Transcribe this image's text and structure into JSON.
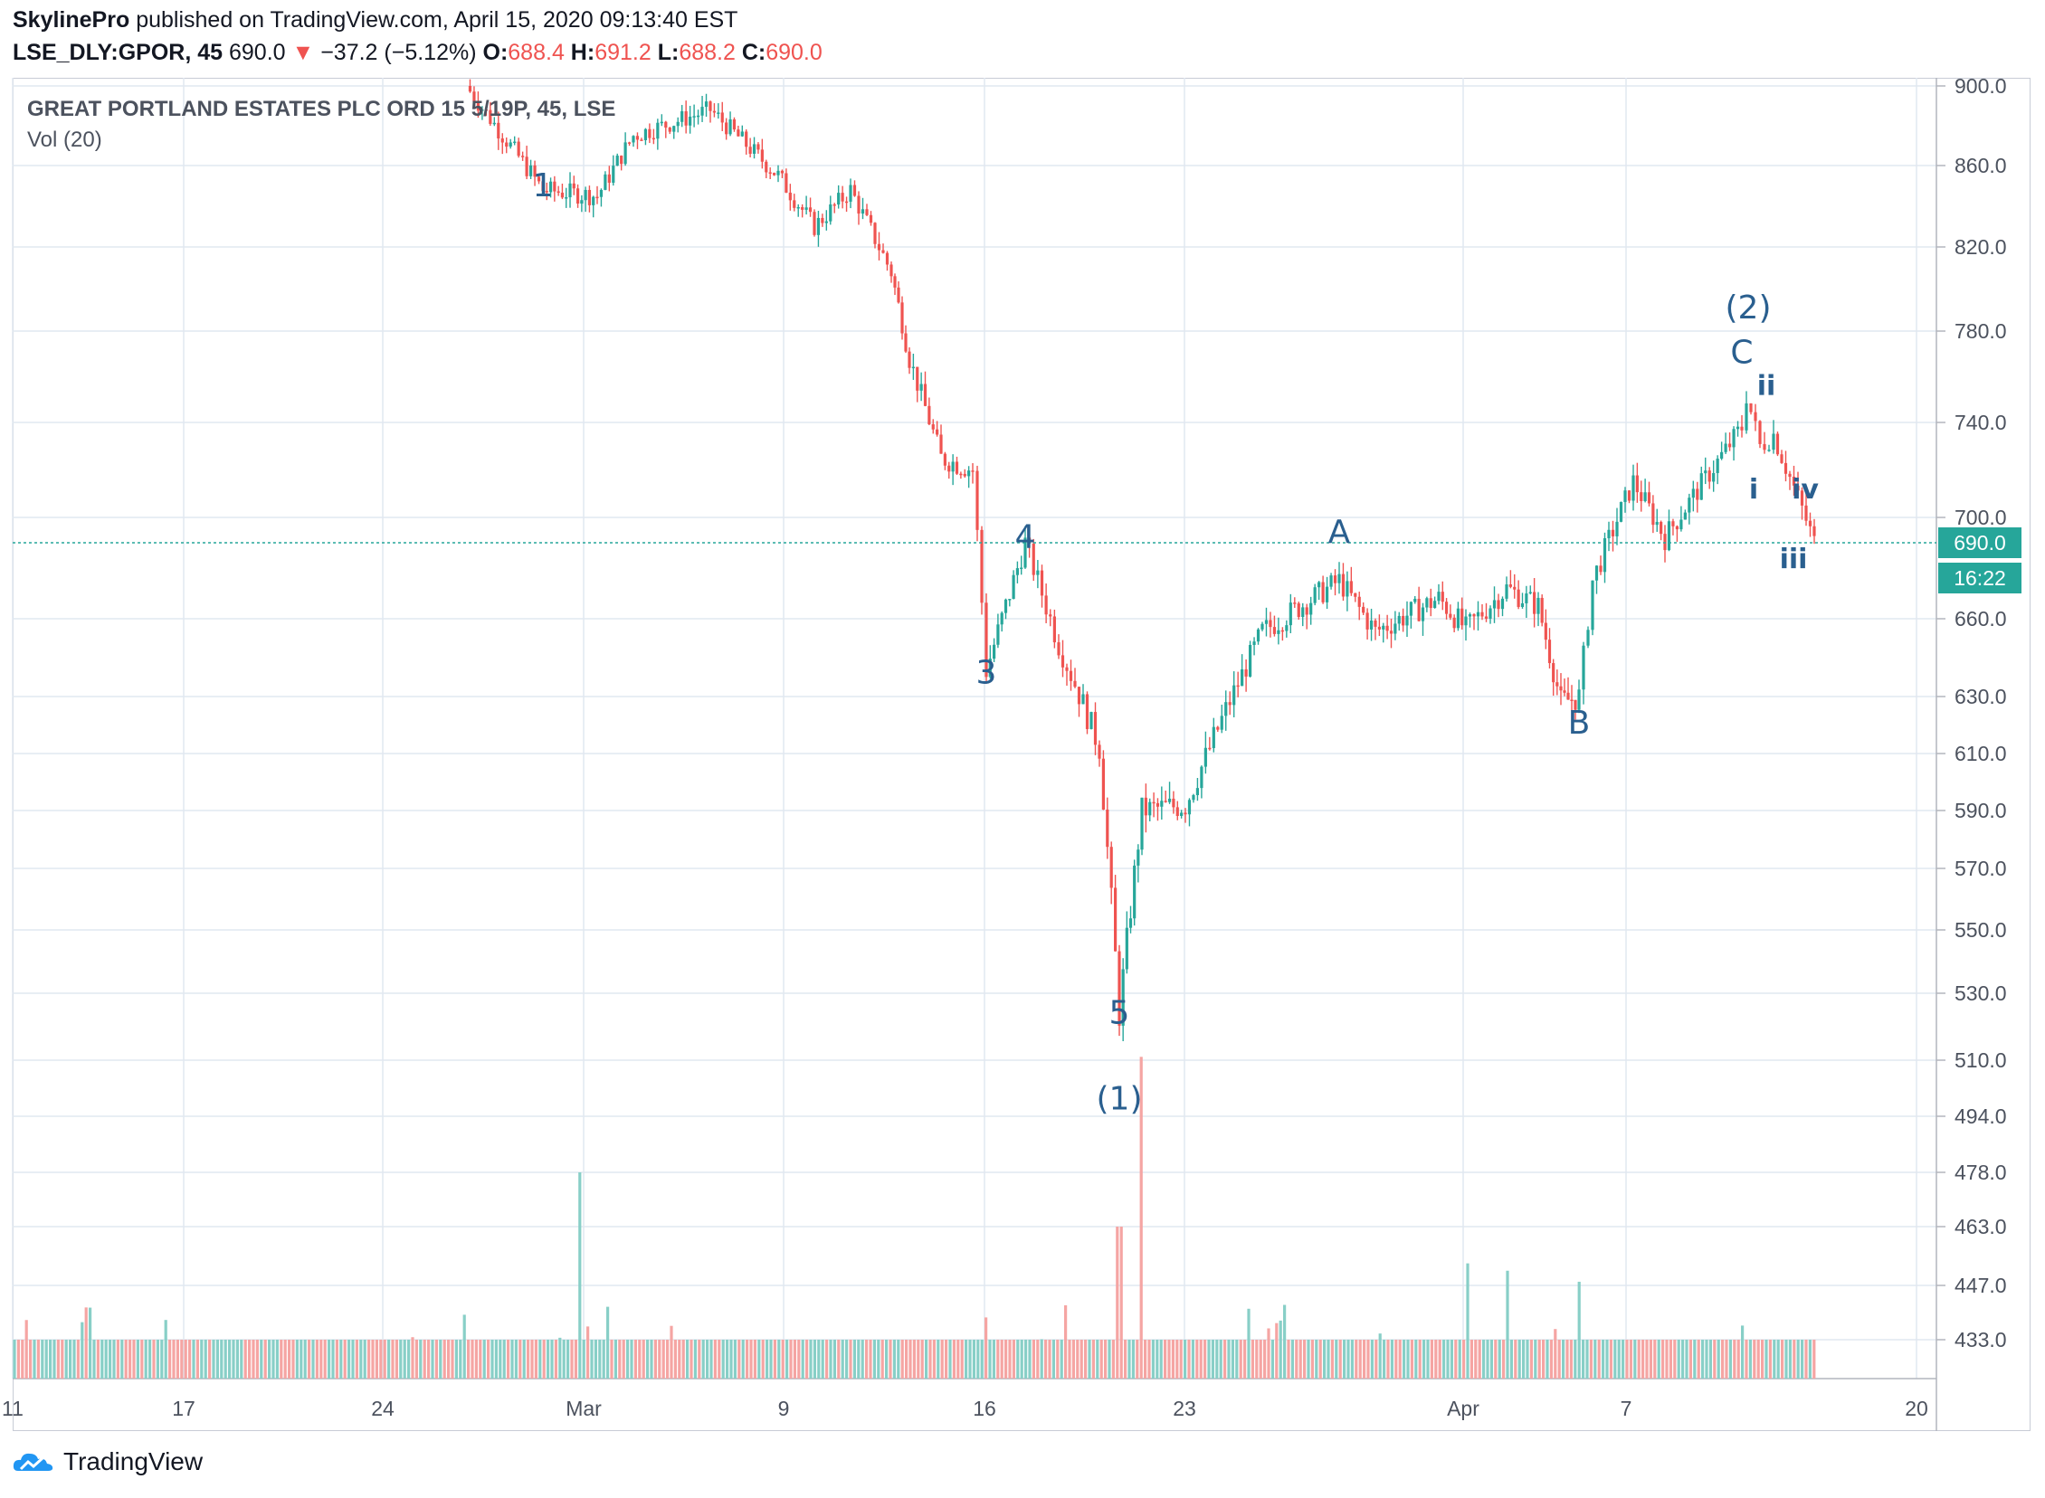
{
  "header": {
    "author": "SkylinePro",
    "published_text": "published on TradingView.com, April 15, 2020 09:13:40 EST",
    "symbol": "LSE_DLY:GPOR, 45",
    "last": "690.0",
    "change": "−37.2 (−5.12%)",
    "o_label": "O:",
    "o_value": "688.4",
    "h_label": "H:",
    "h_value": "691.2",
    "l_label": "L:",
    "l_value": "688.2",
    "c_label": "C:",
    "c_value": "690.0",
    "arrow": "▼"
  },
  "colors": {
    "up": "#26a69a",
    "down": "#ef5350",
    "label": "#2a5f8f",
    "grid": "#e1e8f0",
    "badge": "#26a69a"
  },
  "brand": {
    "name": "TradingView",
    "icon": "tradingview-cloud-icon"
  },
  "chart_data": {
    "type": "candlestick",
    "title": "GREAT PORTLAND ESTATES PLC ORD 15 5/19P, 45, LSE",
    "volume_label": "Vol (20)",
    "y_ticks": [
      "900.0",
      "860.0",
      "820.0",
      "780.0",
      "740.0",
      "700.0",
      "660.0",
      "630.0",
      "610.0",
      "590.0",
      "570.0",
      "550.0",
      "530.0",
      "510.0",
      "494.0",
      "478.0",
      "463.0",
      "447.0",
      "433.0"
    ],
    "y_tick_values": [
      900,
      860,
      820,
      780,
      740,
      700,
      660,
      630,
      610,
      590,
      570,
      550,
      530,
      510,
      494,
      478,
      463,
      447,
      433
    ],
    "x_ticks": [
      "11",
      "17",
      "24",
      "Mar",
      "9",
      "16",
      "23",
      "Apr",
      "7",
      "20"
    ],
    "last_price": "690.0",
    "countdown": "16:22",
    "wave_labels": [
      {
        "text": "1",
        "date": "Feb 28",
        "price": 845
      },
      {
        "text": "3",
        "date": "Mar 16",
        "price": 635
      },
      {
        "text": "4",
        "date": "Mar 17",
        "price": 688
      },
      {
        "text": "5",
        "date": "Mar 20",
        "price": 521
      },
      {
        "text": "(1)",
        "date": "Mar 20",
        "price": 496
      },
      {
        "text": "A",
        "date": "Mar 27",
        "price": 690
      },
      {
        "text": "B",
        "date": "Apr 6",
        "price": 617
      },
      {
        "text": "(2)",
        "date": "Apr 9",
        "price": 786
      },
      {
        "text": "C",
        "date": "Apr 9",
        "price": 766
      },
      {
        "text": "ii",
        "date": "Apr 9",
        "price": 752
      },
      {
        "text": "i",
        "date": "Apr 9",
        "price": 708
      },
      {
        "text": "iv",
        "date": "Apr 14",
        "price": 708
      },
      {
        "text": "iii",
        "date": "Apr 14",
        "price": 680
      }
    ],
    "series": [
      {
        "name": "Price",
        "anchors": [
          {
            "date": "Feb 26",
            "close": 900
          },
          {
            "date": "Feb 28",
            "close": 848
          },
          {
            "date": "Mar 2",
            "close": 845
          },
          {
            "date": "Mar 3",
            "close": 875
          },
          {
            "date": "Mar 6",
            "close": 888
          },
          {
            "date": "Mar 9",
            "close": 855
          },
          {
            "date": "Mar 10",
            "close": 830
          },
          {
            "date": "Mar 11",
            "close": 848
          },
          {
            "date": "Mar 12",
            "close": 808
          },
          {
            "date": "Mar 13",
            "close": 768
          },
          {
            "date": "Mar 14",
            "close": 725
          },
          {
            "date": "Mar 15",
            "close": 720
          },
          {
            "date": "Mar 16",
            "close": 640
          },
          {
            "date": "Mar 17",
            "close": 690
          },
          {
            "date": "Mar 18",
            "close": 650
          },
          {
            "date": "Mar 19",
            "close": 612
          },
          {
            "date": "Mar 20",
            "close": 524
          },
          {
            "date": "Mar 21",
            "close": 590
          },
          {
            "date": "Mar 23",
            "close": 592
          },
          {
            "date": "Mar 25",
            "close": 655
          },
          {
            "date": "Mar 27",
            "close": 675
          },
          {
            "date": "Mar 28",
            "close": 655
          },
          {
            "date": "Mar 30",
            "close": 668
          },
          {
            "date": "Apr 1",
            "close": 656
          },
          {
            "date": "Apr 2",
            "close": 672
          },
          {
            "date": "Apr 3",
            "close": 665
          },
          {
            "date": "Apr 5",
            "close": 628
          },
          {
            "date": "Apr 6",
            "close": 630
          },
          {
            "date": "Apr 7",
            "close": 675
          },
          {
            "date": "Apr 7b",
            "close": 715
          },
          {
            "date": "Apr 8",
            "close": 692
          },
          {
            "date": "Apr 9",
            "close": 738
          },
          {
            "date": "Apr 10",
            "close": 752
          },
          {
            "date": "Apr 10b",
            "close": 730
          },
          {
            "date": "Apr 13",
            "close": 735
          },
          {
            "date": "Apr 14",
            "close": 690
          }
        ]
      },
      {
        "name": "Volume",
        "peaks": [
          {
            "date": "Mar 1",
            "value": 478
          },
          {
            "date": "Mar 20",
            "value": 463
          },
          {
            "date": "Mar 21",
            "value": 511
          },
          {
            "date": "Apr 1",
            "value": 453
          },
          {
            "date": "Apr 2",
            "value": 451
          },
          {
            "date": "Apr 6",
            "value": 448
          }
        ]
      }
    ]
  }
}
